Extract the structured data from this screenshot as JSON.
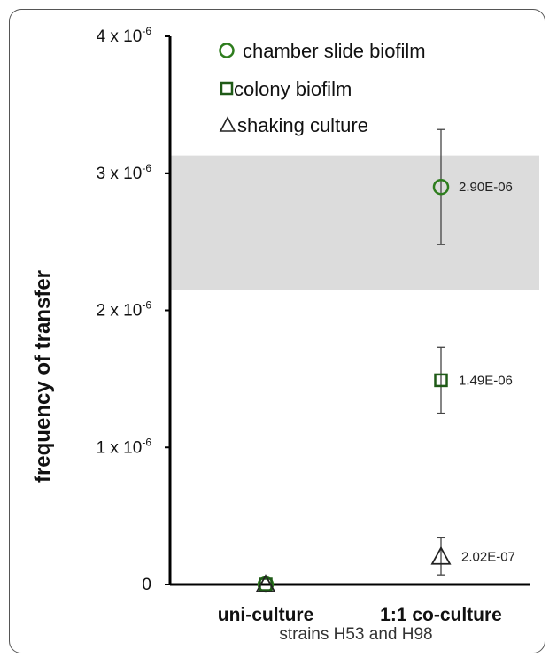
{
  "chart_data": {
    "type": "scatter",
    "title": "",
    "xlabel": "strains H53 and H98",
    "ylabel": "frequency of transfer",
    "categories": [
      "uni-culture",
      "1:1 co-culture"
    ],
    "ylim": [
      0,
      4e-06
    ],
    "yticks": [
      {
        "value": 4e-06,
        "base": "4 x 10",
        "exp": "-6"
      },
      {
        "value": 3e-06,
        "base": "3 x 10",
        "exp": "-6"
      },
      {
        "value": 2e-06,
        "base": "2 x 10",
        "exp": "-6"
      },
      {
        "value": 1e-06,
        "base": "1 x 10",
        "exp": "-6"
      },
      {
        "value": 0,
        "base": "0",
        "exp": ""
      }
    ],
    "shaded_band": [
      2.15e-06,
      3.13e-06
    ],
    "grid": false,
    "legend_position": "top",
    "series": [
      {
        "name": "chamber slide biofilm",
        "marker": "circle",
        "color": "#2e7d1e",
        "values": [
          0,
          2.9e-06
        ],
        "err_low": [
          0,
          2.48e-06
        ],
        "err_high": [
          0,
          3.32e-06
        ],
        "labels": [
          "",
          "2.90E-06"
        ]
      },
      {
        "name": "colony biofilm",
        "marker": "square",
        "color": "#1f5a17",
        "values": [
          0,
          1.49e-06
        ],
        "err_low": [
          0,
          1.25e-06
        ],
        "err_high": [
          0,
          1.73e-06
        ],
        "labels": [
          "",
          "1.49E-06"
        ]
      },
      {
        "name": "shaking culture",
        "marker": "triangle",
        "color": "#222222",
        "values": [
          0,
          2.02e-07
        ],
        "err_low": [
          0,
          7e-08
        ],
        "err_high": [
          0,
          3.4e-07
        ],
        "labels": [
          "",
          "2.02E-07"
        ]
      }
    ]
  }
}
